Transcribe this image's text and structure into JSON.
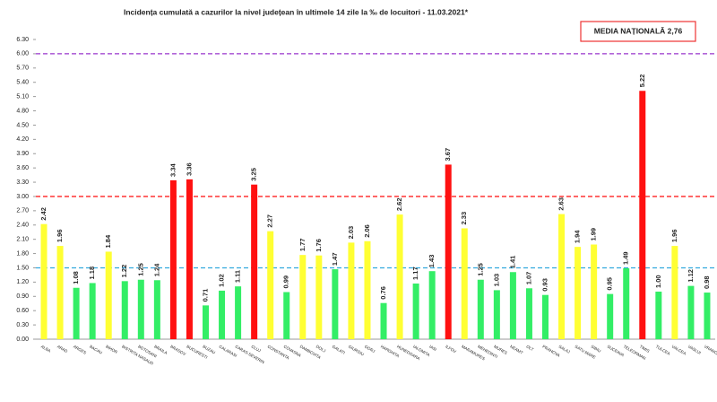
{
  "chart_data": {
    "type": "bar",
    "title": "Incidența cumulată a cazurilor la nivel județean în ultimele 14 zile la ‰ de locuitori - 11.03.2021*",
    "annotation": "MEDIA NAȚIONALĂ 2,76",
    "categories": [
      "ALBA",
      "ARAD",
      "ARGES",
      "BACAU",
      "BIHOR",
      "BISTRITA NASAUD",
      "BOTOSANI",
      "BRAILA",
      "BRASOV",
      "BUCURESTI",
      "BUZAU",
      "CALARASI",
      "CARAS-SEVERIN",
      "CLUJ",
      "CONSTANTA",
      "COVASNA",
      "DAMBOVITA",
      "DOLJ",
      "GALATI",
      "GIURGIU",
      "GORJ",
      "HARGHITA",
      "HUNEDOARA",
      "IALOMITA",
      "IASI",
      "ILFOV",
      "MARAMURES",
      "MEHEDINTI",
      "MURES",
      "NEAMT",
      "OLT",
      "PRAHOVA",
      "SALAJ",
      "SATU MARE",
      "SIBIU",
      "SUCEAVA",
      "TELEORMAN",
      "TIMIS",
      "TULCEA",
      "VALCEA",
      "VASLUI",
      "VRANCEA"
    ],
    "values": [
      2.42,
      1.96,
      1.08,
      1.18,
      1.84,
      1.22,
      1.25,
      1.24,
      3.34,
      3.36,
      0.71,
      1.02,
      1.11,
      3.25,
      2.27,
      0.99,
      1.77,
      1.76,
      1.47,
      2.03,
      2.06,
      0.76,
      2.62,
      1.17,
      1.43,
      3.67,
      2.33,
      1.25,
      1.03,
      1.41,
      1.07,
      0.93,
      2.63,
      1.94,
      1.99,
      0.95,
      1.49,
      5.22,
      1.0,
      1.96,
      1.12,
      0.98
    ],
    "value_labels": [
      "2.42",
      "1.96",
      "1.08",
      "1.18",
      "1.84",
      "1.22",
      "1.25",
      "1.24",
      "3.34",
      "3.36",
      "0.71",
      "1.02",
      "1.11",
      "3.25",
      "2.27",
      "0.99",
      "1.77",
      "1.76",
      "1.47",
      "2.03",
      "2.06",
      "0.76",
      "2.62",
      "1.17",
      "1.43",
      "3.67",
      "2.33",
      "1.25",
      "1.03",
      "1.41",
      "1.07",
      "0.93",
      "2.63",
      "1.94",
      "1.99",
      "0.95",
      "1.49",
      "5.22",
      "1.00",
      "1.96",
      "1.12",
      "0.98"
    ],
    "colors": [
      "#ffff33",
      "#ffff33",
      "#33ee66",
      "#33ee66",
      "#ffff33",
      "#33ee66",
      "#33ee66",
      "#33ee66",
      "#ff1111",
      "#ff1111",
      "#33ee66",
      "#33ee66",
      "#33ee66",
      "#ff1111",
      "#ffff33",
      "#33ee66",
      "#ffff33",
      "#ffff33",
      "#33ee66",
      "#ffff33",
      "#ffff33",
      "#33ee66",
      "#ffff33",
      "#33ee66",
      "#33ee66",
      "#ff1111",
      "#ffff33",
      "#33ee66",
      "#33ee66",
      "#33ee66",
      "#33ee66",
      "#33ee66",
      "#ffff33",
      "#ffff33",
      "#ffff33",
      "#33ee66",
      "#33ee66",
      "#ff1111",
      "#33ee66",
      "#ffff33",
      "#33ee66",
      "#33ee66"
    ],
    "ylim": [
      0,
      6.3
    ],
    "yticks": [
      {
        "value": 0,
        "label": "0.00"
      },
      {
        "value": 0.3,
        "label": "0.30"
      },
      {
        "value": 0.6,
        "label": "0.60"
      },
      {
        "value": 0.9,
        "label": "0.90"
      },
      {
        "value": 1.2,
        "label": "1.20"
      },
      {
        "value": 1.5,
        "label": "1.50"
      },
      {
        "value": 1.8,
        "label": "1.80"
      },
      {
        "value": 2.1,
        "label": "2.10"
      },
      {
        "value": 2.4,
        "label": "2.40"
      },
      {
        "value": 2.7,
        "label": "2.70"
      },
      {
        "value": 3.0,
        "label": "3.00"
      },
      {
        "value": 3.3,
        "label": "3.30"
      },
      {
        "value": 3.6,
        "label": "3.60"
      },
      {
        "value": 3.9,
        "label": "3.90"
      },
      {
        "value": 4.2,
        "label": "4.20"
      },
      {
        "value": 4.5,
        "label": "4.50"
      },
      {
        "value": 4.8,
        "label": "4.80"
      },
      {
        "value": 5.1,
        "label": "5.10"
      },
      {
        "value": 5.4,
        "label": "5.40"
      },
      {
        "value": 5.7,
        "label": "5.70"
      },
      {
        "value": 6.0,
        "label": "6.00"
      },
      {
        "value": 6.3,
        "label": "6.30"
      }
    ],
    "reference_lines": [
      {
        "value": 1.5,
        "color": "#33aadd"
      },
      {
        "value": 3.0,
        "color": "#ff2222"
      },
      {
        "value": 6.0,
        "color": "#9933cc"
      }
    ]
  }
}
